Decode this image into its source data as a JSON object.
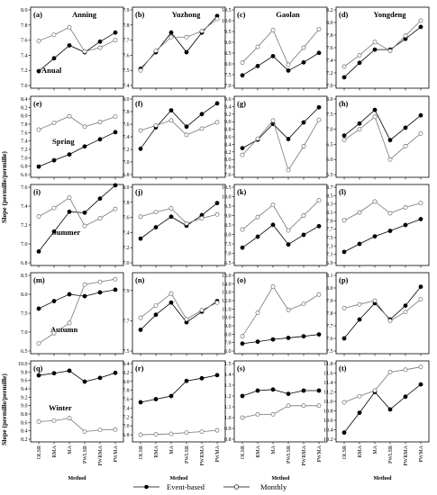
{
  "figure": {
    "ylabel": "Slope (permille/permille)",
    "xlabel": "Method",
    "methods": [
      "OLSR",
      "RMA",
      "MA",
      "PWLSR",
      "PWRMA",
      "PWMA"
    ],
    "stations": [
      "Anning",
      "Yuzhong",
      "Gaolan",
      "Yongdeng"
    ],
    "seasons": [
      "Anual",
      "Spring",
      "Summer",
      "Autumn",
      "Winter"
    ],
    "legend": {
      "event": "Event-based",
      "monthly": "Monthly"
    }
  },
  "chart_data": [
    {
      "type": "line",
      "panel": "(a)",
      "station": "Anning",
      "season": "Anual",
      "ylim": [
        7.0,
        8.0
      ],
      "yticks": [
        "7.0",
        "7.2",
        "7.4",
        "7.6",
        "7.8",
        "8.0"
      ],
      "series": [
        {
          "name": "Event-based",
          "values": [
            7.19,
            7.36,
            7.53,
            7.44,
            7.58,
            7.7
          ]
        },
        {
          "name": "Monthly",
          "values": [
            7.59,
            7.67,
            7.77,
            7.45,
            7.5,
            7.6
          ]
        }
      ]
    },
    {
      "type": "line",
      "panel": "(b)",
      "station": "Yuzhong",
      "ylim": [
        7.4,
        7.9
      ],
      "yticks": [
        "7.4",
        "7.5",
        "7.6",
        "7.7",
        "7.8",
        "7.9"
      ],
      "series": [
        {
          "name": "Event-based",
          "values": [
            7.51,
            7.62,
            7.75,
            7.62,
            7.75,
            7.86
          ]
        },
        {
          "name": "Monthly",
          "values": [
            7.5,
            7.63,
            7.72,
            7.72,
            7.76,
            7.84
          ]
        }
      ]
    },
    {
      "type": "line",
      "panel": "(c)",
      "station": "Gaolan",
      "ylim": [
        7.0,
        10.5
      ],
      "yticks": [
        "7.0",
        "7.5",
        "8.0",
        "8.5",
        "9.0",
        "9.5",
        "10.0",
        "10.5"
      ],
      "series": [
        {
          "name": "Event-based",
          "values": [
            7.47,
            7.9,
            8.36,
            7.69,
            8.07,
            8.51
          ]
        },
        {
          "name": "Monthly",
          "values": [
            8.06,
            8.79,
            9.57,
            7.96,
            8.75,
            9.61
          ]
        }
      ]
    },
    {
      "type": "line",
      "panel": "(d)",
      "station": "Yongdeng",
      "ylim": [
        7.0,
        8.2
      ],
      "yticks": [
        "7.0",
        "7.2",
        "7.4",
        "7.6",
        "7.8",
        "8.0",
        "8.2"
      ],
      "series": [
        {
          "name": "Event-based",
          "values": [
            7.13,
            7.36,
            7.57,
            7.57,
            7.74,
            7.93
          ]
        },
        {
          "name": "Monthly",
          "values": [
            7.3,
            7.48,
            7.69,
            7.55,
            7.79,
            8.03
          ]
        }
      ]
    },
    {
      "type": "line",
      "panel": "(e)",
      "season": "Spring",
      "ylim": [
        6.6,
        8.4
      ],
      "yticks": [
        "6.6",
        "6.8",
        "7.0",
        "7.2",
        "7.4",
        "7.6",
        "7.8",
        "8.0",
        "8.2",
        "8.4"
      ],
      "series": [
        {
          "name": "Event-based",
          "values": [
            6.79,
            6.94,
            7.08,
            7.27,
            7.44,
            7.61
          ]
        },
        {
          "name": "Monthly",
          "values": [
            7.67,
            7.83,
            7.99,
            7.74,
            7.85,
            7.98
          ]
        }
      ]
    },
    {
      "type": "line",
      "panel": "(f)",
      "ylim": [
        6.8,
        8.0
      ],
      "yticks": [
        "6.8",
        "7.0",
        "7.2",
        "7.4",
        "7.6",
        "7.8",
        "8.0"
      ],
      "series": [
        {
          "name": "Event-based",
          "values": [
            7.21,
            7.55,
            7.82,
            7.56,
            7.76,
            7.93
          ]
        },
        {
          "name": "Monthly",
          "values": [
            7.5,
            7.58,
            7.66,
            7.43,
            7.53,
            7.63
          ]
        }
      ]
    },
    {
      "type": "line",
      "panel": "(g)",
      "ylim": [
        7.6,
        9.6
      ],
      "yticks": [
        "7.6",
        "7.8",
        "8.0",
        "8.2",
        "8.4",
        "8.6",
        "8.8",
        "9.0",
        "9.2",
        "9.4",
        "9.6"
      ],
      "series": [
        {
          "name": "Event-based",
          "values": [
            8.3,
            8.52,
            8.94,
            8.54,
            8.98,
            9.38
          ]
        },
        {
          "name": "Monthly",
          "values": [
            8.12,
            8.55,
            9.03,
            7.72,
            8.35,
            9.05
          ]
        }
      ]
    },
    {
      "type": "line",
      "panel": "(h)",
      "ylim": [
        5.5,
        8.0
      ],
      "yticks": [
        "5.5",
        "6.0",
        "6.5",
        "7.0",
        "7.5",
        "8.0"
      ],
      "series": [
        {
          "name": "Event-based",
          "values": [
            6.79,
            7.19,
            7.64,
            6.64,
            7.05,
            7.46
          ]
        },
        {
          "name": "Monthly",
          "values": [
            6.64,
            7.0,
            7.41,
            6.0,
            6.44,
            6.86
          ]
        }
      ]
    },
    {
      "type": "line",
      "panel": "(i)",
      "season": "Summer",
      "ylim": [
        6.8,
        7.6
      ],
      "yticks": [
        "6.8",
        "7.0",
        "7.2",
        "7.4",
        "7.6"
      ],
      "series": [
        {
          "name": "Event-based",
          "values": [
            6.92,
            7.13,
            7.34,
            7.33,
            7.48,
            7.62
          ]
        },
        {
          "name": "Monthly",
          "values": [
            7.29,
            7.38,
            7.49,
            7.19,
            7.27,
            7.37
          ]
        }
      ]
    },
    {
      "type": "line",
      "panel": "(j)",
      "ylim": [
        7.0,
        8.0
      ],
      "yticks": [
        "7.0",
        "7.2",
        "7.4",
        "7.6",
        "7.8",
        "8.0"
      ],
      "series": [
        {
          "name": "Event-based",
          "values": [
            7.32,
            7.47,
            7.61,
            7.49,
            7.63,
            7.79
          ]
        },
        {
          "name": "Monthly",
          "values": [
            7.61,
            7.67,
            7.72,
            7.52,
            7.59,
            7.64
          ]
        }
      ]
    },
    {
      "type": "line",
      "panel": "(k)",
      "ylim": [
        6.5,
        10.5
      ],
      "yticks": [
        "6.5",
        "7.0",
        "7.5",
        "8.0",
        "8.5",
        "9.0",
        "9.5",
        "10.0",
        "10.5"
      ],
      "series": [
        {
          "name": "Event-based",
          "values": [
            7.3,
            7.88,
            8.51,
            7.47,
            7.98,
            8.44
          ]
        },
        {
          "name": "Monthly",
          "values": [
            8.26,
            8.92,
            9.56,
            8.21,
            9.0,
            9.8
          ]
        }
      ]
    },
    {
      "type": "line",
      "panel": "(l)",
      "ylim": [
        6.9,
        8.7
      ],
      "yticks": [
        "6.9",
        "7.1",
        "7.3",
        "7.5",
        "7.7",
        "7.9",
        "8.1",
        "8.3",
        "8.5",
        "8.7"
      ],
      "series": [
        {
          "name": "Event-based",
          "values": [
            7.16,
            7.35,
            7.53,
            7.66,
            7.8,
            7.94
          ]
        },
        {
          "name": "Monthly",
          "values": [
            7.91,
            8.1,
            8.36,
            8.08,
            8.22,
            8.32
          ]
        }
      ]
    },
    {
      "type": "line",
      "panel": "(m)",
      "season": "Autumn",
      "ylim": [
        6.5,
        8.5
      ],
      "yticks": [
        "6.5",
        "7.0",
        "7.5",
        "8.0",
        "8.5"
      ],
      "series": [
        {
          "name": "Event-based",
          "values": [
            7.62,
            7.82,
            8.0,
            7.95,
            8.05,
            8.12
          ]
        },
        {
          "name": "Monthly",
          "values": [
            6.7,
            6.97,
            7.24,
            8.26,
            8.33,
            8.4
          ]
        }
      ]
    },
    {
      "type": "line",
      "panel": "(n)",
      "ylim": [
        7.5,
        8.0
      ],
      "yticks": [
        "7.5",
        "7.7",
        "7.9"
      ],
      "series": [
        {
          "name": "Event-based",
          "values": [
            7.64,
            7.74,
            7.82,
            7.69,
            7.76,
            7.83
          ]
        },
        {
          "name": "Monthly",
          "values": [
            7.72,
            7.8,
            7.88,
            7.71,
            7.77,
            7.82
          ]
        }
      ]
    },
    {
      "type": "line",
      "panel": "(o)",
      "ylim": [
        6.0,
        15.0
      ],
      "yticks": [
        "6.0",
        "7.0",
        "8.0",
        "9.0",
        "10.0",
        "11.0",
        "12.0",
        "13.0",
        "14.0",
        "15.0"
      ],
      "series": [
        {
          "name": "Event-based",
          "values": [
            6.88,
            7.11,
            7.38,
            7.56,
            7.75,
            7.97
          ]
        },
        {
          "name": "Monthly",
          "values": [
            7.75,
            10.56,
            13.68,
            10.88,
            11.6,
            12.72
          ]
        }
      ]
    },
    {
      "type": "line",
      "panel": "(p)",
      "ylim": [
        7.5,
        8.1
      ],
      "yticks": [
        "7.5",
        "7.6",
        "7.7",
        "7.8",
        "7.9",
        "8.0",
        "8.1"
      ],
      "series": [
        {
          "name": "Event-based",
          "values": [
            7.6,
            7.75,
            7.88,
            7.75,
            7.86,
            8.01
          ]
        },
        {
          "name": "Monthly",
          "values": [
            7.84,
            7.87,
            7.9,
            7.74,
            7.81,
            7.91
          ]
        }
      ]
    },
    {
      "type": "line",
      "panel": "(q)",
      "season": "Winter",
      "ylim": [
        8.2,
        10.0
      ],
      "yticks": [
        "8.2",
        "8.4",
        "8.6",
        "8.8",
        "9.0",
        "9.2",
        "9.4",
        "9.6",
        "9.8",
        "10.0"
      ],
      "series": [
        {
          "name": "Event-based",
          "values": [
            9.72,
            9.77,
            9.83,
            9.57,
            9.66,
            9.78
          ]
        },
        {
          "name": "Monthly",
          "values": [
            8.62,
            8.64,
            8.7,
            8.38,
            8.42,
            8.43
          ]
        }
      ]
    },
    {
      "type": "line",
      "panel": "(r)",
      "ylim": [
        6.7,
        8.4
      ],
      "yticks": [
        "6.8",
        "7.0",
        "7.2",
        "7.4",
        "7.6",
        "7.8",
        "8.0",
        "8.2",
        "8.4"
      ],
      "series": [
        {
          "name": "Event-based",
          "values": [
            7.53,
            7.6,
            7.67,
            8.01,
            8.07,
            8.14
          ]
        },
        {
          "name": "Monthly",
          "values": [
            6.8,
            6.81,
            6.82,
            6.85,
            6.87,
            6.9
          ]
        }
      ]
    },
    {
      "type": "line",
      "panel": "(s)",
      "ylim": [
        0.8,
        1.5
      ],
      "yticks": [
        "0.8",
        "0.9",
        "1.0",
        "1.1",
        "1.2",
        "1.3",
        "1.4",
        "1.5"
      ],
      "series": [
        {
          "name": "Event-based",
          "values": [
            1.2,
            1.25,
            1.26,
            1.22,
            1.25,
            1.25
          ]
        },
        {
          "name": "Monthly",
          "values": [
            1.0,
            1.03,
            1.03,
            1.11,
            1.11,
            1.11
          ]
        }
      ]
    },
    {
      "type": "line",
      "panel": "(t)",
      "ylim": [
        10.2,
        11.8
      ],
      "yticks": [
        "10.2",
        "10.4",
        "10.6",
        "10.8",
        "11.0",
        "11.2",
        "11.4",
        "11.6",
        "11.8"
      ],
      "series": [
        {
          "name": "Event-based",
          "values": [
            10.34,
            10.76,
            11.2,
            10.83,
            11.1,
            11.36
          ]
        },
        {
          "name": "Monthly",
          "values": [
            10.98,
            11.11,
            11.23,
            11.62,
            11.67,
            11.73
          ]
        }
      ]
    }
  ]
}
